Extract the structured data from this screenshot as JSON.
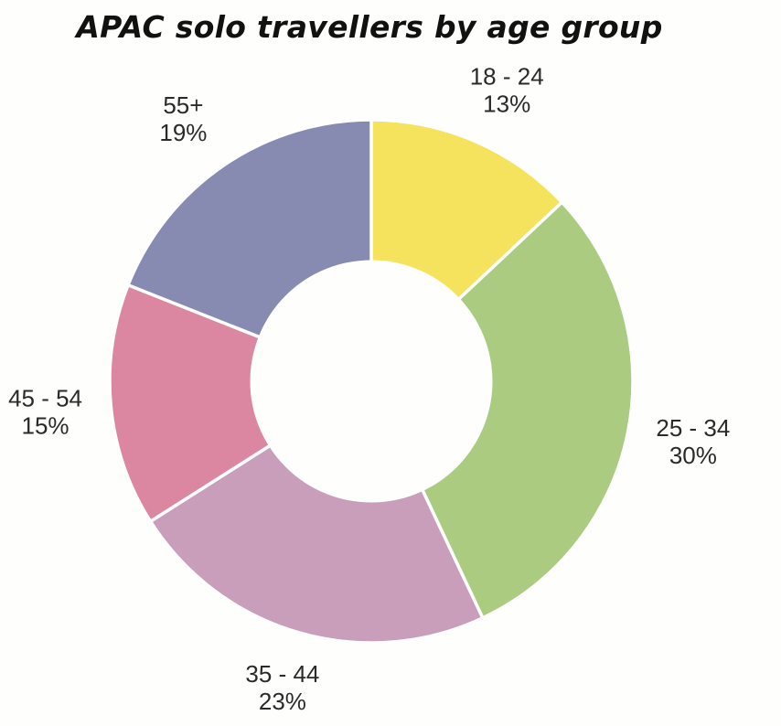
{
  "chart_data": {
    "type": "pie",
    "variant": "donut",
    "title": "APAC solo travellers by age group",
    "categories": [
      "18 - 24",
      "25 - 34",
      "35 - 44",
      "45 - 54",
      "55+"
    ],
    "values": [
      13,
      30,
      23,
      15,
      19
    ],
    "value_labels": [
      "13%",
      "30%",
      "23%",
      "15%",
      "19%"
    ],
    "unit": "%",
    "start_angle": "12 o'clock",
    "direction": "clockwise",
    "legend": "none",
    "colors": [
      "#f5e35e",
      "#abcc80",
      "#c89eba",
      "#db87a2",
      "#878bb2"
    ],
    "slice_border_color": "#ffffff",
    "hole_color": "#fefefc"
  }
}
